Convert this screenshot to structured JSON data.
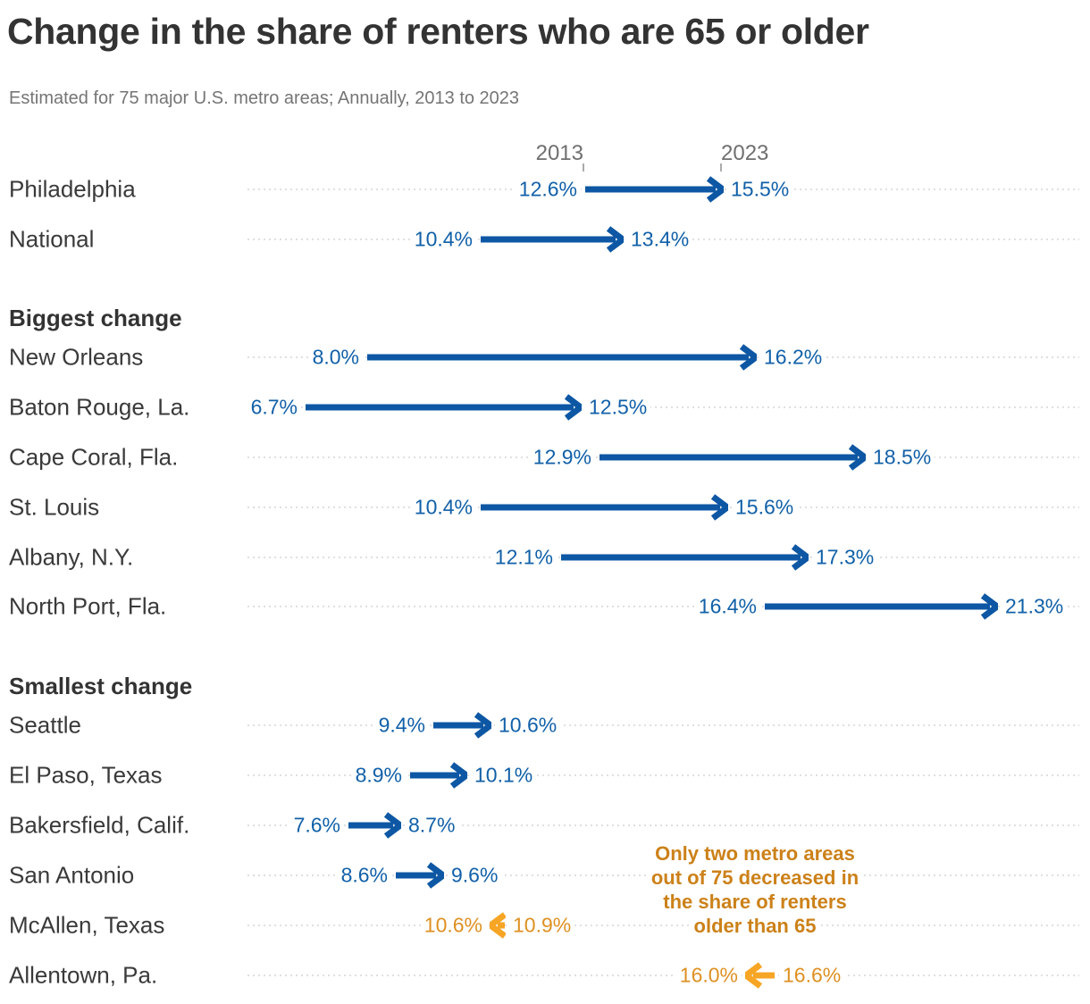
{
  "title": "Change in the share of renters who are 65 or older",
  "subtitle": "Estimated for 75 major U.S. metro areas; Annually, 2013 to 2023",
  "axis": {
    "start_year": "2013",
    "end_year": "2023"
  },
  "colors": {
    "increase_arrow": "#0d57a4",
    "increase_label": "#1160a8",
    "decrease_arrow": "#f7a525",
    "decrease_label": "#de9022",
    "annotation": "#cc8119",
    "leader_dots": "#dfdfe3",
    "city_label": "#3a3a3a"
  },
  "annotation": {
    "lines": [
      "Only two metro areas",
      "out of 75 decreased in",
      "the share of renters",
      "older than 65"
    ]
  },
  "chart_data": {
    "type": "arrow",
    "unit": "%",
    "x_years": [
      "2013",
      "2023"
    ],
    "xlim": [
      6.0,
      22.0
    ],
    "sections": [
      "Biggest change",
      "Smallest change"
    ],
    "rows": [
      {
        "label": "Philadelphia",
        "start": 12.6,
        "end": 15.5
      },
      {
        "label": "National",
        "start": 10.4,
        "end": 13.4
      },
      {
        "section": "Biggest change",
        "label": "New Orleans",
        "start": 8.0,
        "end": 16.2
      },
      {
        "label": "Baton Rouge, La.",
        "start": 6.7,
        "end": 12.5
      },
      {
        "label": "Cape Coral, Fla.",
        "start": 12.9,
        "end": 18.5
      },
      {
        "label": "St. Louis",
        "start": 10.4,
        "end": 15.6
      },
      {
        "label": "Albany, N.Y.",
        "start": 12.1,
        "end": 17.3
      },
      {
        "label": "North Port, Fla.",
        "start": 16.4,
        "end": 21.3
      },
      {
        "section": "Smallest change",
        "label": "Seattle",
        "start": 9.4,
        "end": 10.6
      },
      {
        "label": "El Paso, Texas",
        "start": 8.9,
        "end": 10.1
      },
      {
        "label": "Bakersfield, Calif.",
        "start": 7.6,
        "end": 8.7
      },
      {
        "label": "San Antonio",
        "start": 8.6,
        "end": 9.6
      },
      {
        "label": "McAllen, Texas",
        "start": 10.9,
        "end": 10.6
      },
      {
        "label": "Allentown, Pa.",
        "start": 16.6,
        "end": 16.0
      }
    ]
  }
}
